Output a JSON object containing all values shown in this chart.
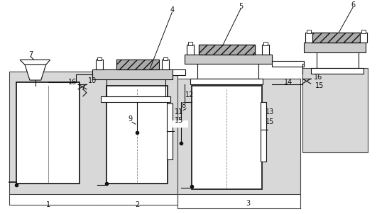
{
  "fig_width": 5.31,
  "fig_height": 3.02,
  "dpi": 100,
  "lc": "#444444",
  "dc": "#111111",
  "fc_basin": "#d8d8d8",
  "fc_white": "white",
  "fc_gray": "#bbbbbb",
  "fc_lgray": "#cccccc"
}
